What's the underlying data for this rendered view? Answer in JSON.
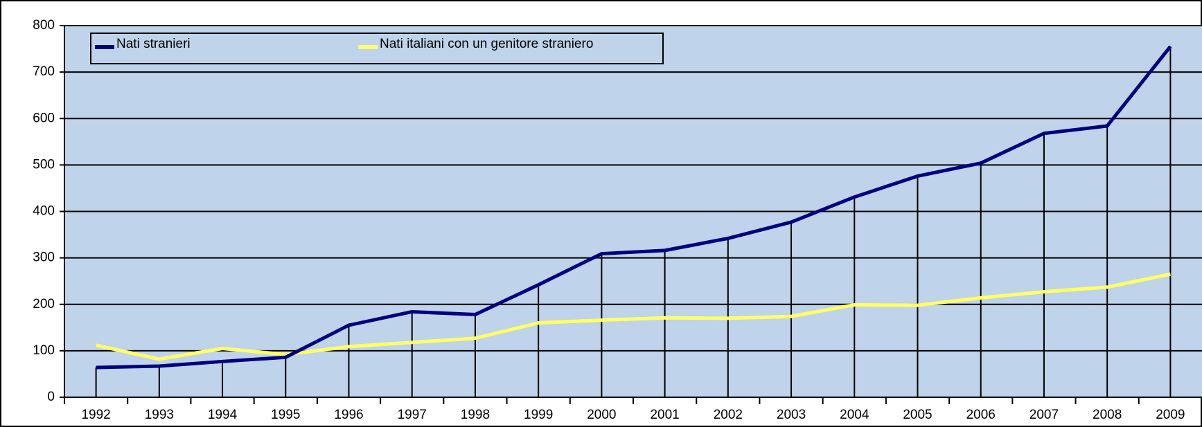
{
  "chart_data": {
    "type": "line",
    "categories": [
      "1992",
      "1993",
      "1994",
      "1995",
      "1996",
      "1997",
      "1998",
      "1999",
      "2000",
      "2001",
      "2002",
      "2003",
      "2004",
      "2005",
      "2006",
      "2007",
      "2008",
      "2009"
    ],
    "series": [
      {
        "name": "Nati stranieri",
        "color": "#000080",
        "values": [
          64,
          67,
          77,
          86,
          155,
          184,
          178,
          242,
          309,
          316,
          342,
          377,
          431,
          476,
          504,
          568,
          584,
          755
        ]
      },
      {
        "name": "Nati italiani con un genitore straniero",
        "color": "#ffff66",
        "values": [
          112,
          82,
          105,
          92,
          109,
          118,
          127,
          160,
          166,
          171,
          170,
          174,
          199,
          198,
          214,
          227,
          237,
          265
        ]
      }
    ],
    "ylim": [
      0,
      800
    ],
    "yticks": [
      0,
      100,
      200,
      300,
      400,
      500,
      600,
      700,
      800
    ],
    "grid": true,
    "drop_lines": true,
    "legend": "top"
  }
}
